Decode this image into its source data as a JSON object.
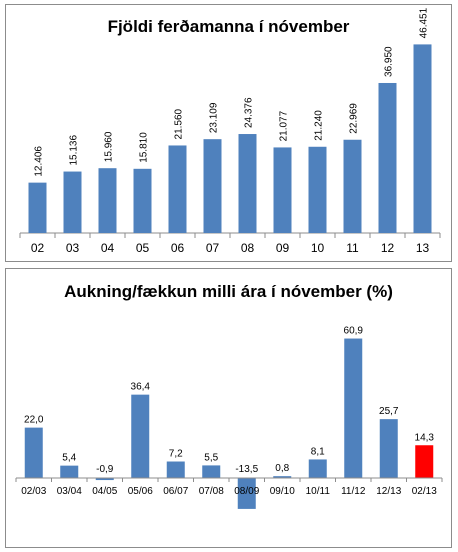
{
  "chart_data": [
    {
      "type": "bar",
      "title": "Fjöldi ferðamanna í nóvember",
      "categories": [
        "02",
        "03",
        "04",
        "05",
        "06",
        "07",
        "08",
        "09",
        "10",
        "11",
        "12",
        "13"
      ],
      "values": [
        12406,
        15136,
        15960,
        15810,
        21560,
        23109,
        24376,
        21077,
        21240,
        22969,
        36950,
        46451
      ],
      "value_labels": [
        "12.406",
        "15.136",
        "15.960",
        "15.810",
        "21.560",
        "23.109",
        "24.376",
        "21.077",
        "21.240",
        "22.969",
        "36.950",
        "46.451"
      ],
      "ylim": [
        0,
        50000
      ],
      "bar_color": "#4f81bd",
      "grid": false
    },
    {
      "type": "bar",
      "title": "Aukning/fækkun milli ára í nóvember (%)",
      "categories": [
        "02/03",
        "03/04",
        "04/05",
        "05/06",
        "06/07",
        "07/08",
        "08/09",
        "09/10",
        "10/11",
        "11/12",
        "12/13",
        "02/13"
      ],
      "values": [
        22.0,
        5.4,
        -0.9,
        36.4,
        7.2,
        5.5,
        -13.5,
        0.8,
        8.1,
        60.9,
        25.7,
        14.3
      ],
      "value_labels": [
        "22,0",
        "5,4",
        "-0,9",
        "36,4",
        "7,2",
        "5,5",
        "-13,5",
        "0,8",
        "8,1",
        "60,9",
        "25,7",
        "14,3"
      ],
      "ylim": [
        -15,
        65
      ],
      "bar_color": "#4f81bd",
      "highlight_color": "#ff0000",
      "highlight_index": 11,
      "grid": false
    }
  ]
}
